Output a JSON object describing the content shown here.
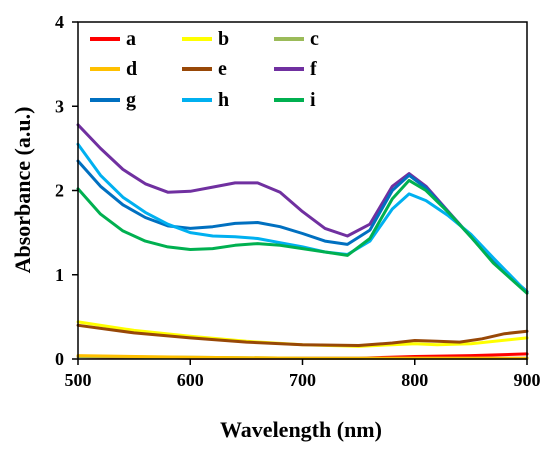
{
  "chart_data": {
    "type": "line",
    "xlabel": "Wavelength (nm)",
    "ylabel": "Absorbance (a.u.)",
    "xlim": [
      500,
      900
    ],
    "ylim": [
      0,
      4
    ],
    "xticks": [
      "500",
      "600",
      "700",
      "800",
      "900"
    ],
    "yticks": [
      "0",
      "1",
      "2",
      "3",
      "4"
    ],
    "grid": false,
    "legend_position": "top-left",
    "series": [
      {
        "name": "a",
        "color": "#ff0000",
        "x": [
          500,
          600,
          700,
          750,
          800,
          850,
          900
        ],
        "y": [
          0.03,
          0.01,
          0.01,
          0.01,
          0.03,
          0.04,
          0.06
        ]
      },
      {
        "name": "b",
        "color": "#ffff00",
        "x": [
          500,
          550,
          600,
          650,
          700,
          750,
          780,
          800,
          820,
          850,
          900
        ],
        "y": [
          0.44,
          0.34,
          0.27,
          0.21,
          0.17,
          0.15,
          0.17,
          0.18,
          0.17,
          0.18,
          0.25
        ]
      },
      {
        "name": "c",
        "color": "#9bbb59",
        "x": [
          500,
          600,
          700,
          800,
          900
        ],
        "y": [
          0.03,
          0.02,
          0.01,
          0.01,
          0.01
        ]
      },
      {
        "name": "d",
        "color": "#ffc000",
        "x": [
          500,
          600,
          700,
          800,
          900
        ],
        "y": [
          0.04,
          0.02,
          0.01,
          0.01,
          0.01
        ]
      },
      {
        "name": "e",
        "color": "#984807",
        "x": [
          500,
          550,
          600,
          650,
          700,
          750,
          780,
          800,
          820,
          840,
          860,
          880,
          900
        ],
        "y": [
          0.4,
          0.31,
          0.25,
          0.2,
          0.17,
          0.16,
          0.19,
          0.22,
          0.21,
          0.2,
          0.24,
          0.3,
          0.33
        ]
      },
      {
        "name": "f",
        "color": "#7030a0",
        "x": [
          500,
          520,
          540,
          560,
          580,
          600,
          620,
          640,
          660,
          680,
          700,
          720,
          740,
          760,
          780,
          795,
          810,
          830,
          850,
          870,
          900
        ],
        "y": [
          2.78,
          2.5,
          2.25,
          2.08,
          1.98,
          1.99,
          2.04,
          2.09,
          2.09,
          1.98,
          1.75,
          1.55,
          1.46,
          1.6,
          2.05,
          2.2,
          2.05,
          1.75,
          1.45,
          1.15,
          0.8
        ]
      },
      {
        "name": "g",
        "color": "#0070c0",
        "x": [
          500,
          520,
          540,
          560,
          580,
          600,
          620,
          640,
          660,
          680,
          700,
          720,
          740,
          760,
          780,
          795,
          810,
          830,
          850,
          870,
          900
        ],
        "y": [
          2.35,
          2.05,
          1.83,
          1.68,
          1.58,
          1.55,
          1.57,
          1.61,
          1.62,
          1.57,
          1.49,
          1.4,
          1.36,
          1.53,
          2.0,
          2.18,
          2.03,
          1.74,
          1.45,
          1.15,
          0.8
        ]
      },
      {
        "name": "h",
        "color": "#00b0f0",
        "x": [
          500,
          520,
          540,
          560,
          580,
          600,
          620,
          640,
          660,
          680,
          700,
          720,
          740,
          760,
          780,
          795,
          810,
          830,
          850,
          870,
          900
        ],
        "y": [
          2.55,
          2.18,
          1.92,
          1.74,
          1.6,
          1.5,
          1.46,
          1.45,
          1.43,
          1.38,
          1.33,
          1.27,
          1.24,
          1.4,
          1.78,
          1.96,
          1.88,
          1.7,
          1.48,
          1.2,
          0.79
        ]
      },
      {
        "name": "i",
        "color": "#00b050",
        "x": [
          500,
          520,
          540,
          560,
          580,
          600,
          620,
          640,
          660,
          680,
          700,
          720,
          740,
          760,
          780,
          795,
          810,
          830,
          850,
          870,
          900
        ],
        "y": [
          2.02,
          1.72,
          1.52,
          1.4,
          1.33,
          1.3,
          1.31,
          1.35,
          1.37,
          1.35,
          1.31,
          1.27,
          1.23,
          1.43,
          1.9,
          2.12,
          2.0,
          1.74,
          1.45,
          1.14,
          0.78
        ]
      }
    ]
  }
}
